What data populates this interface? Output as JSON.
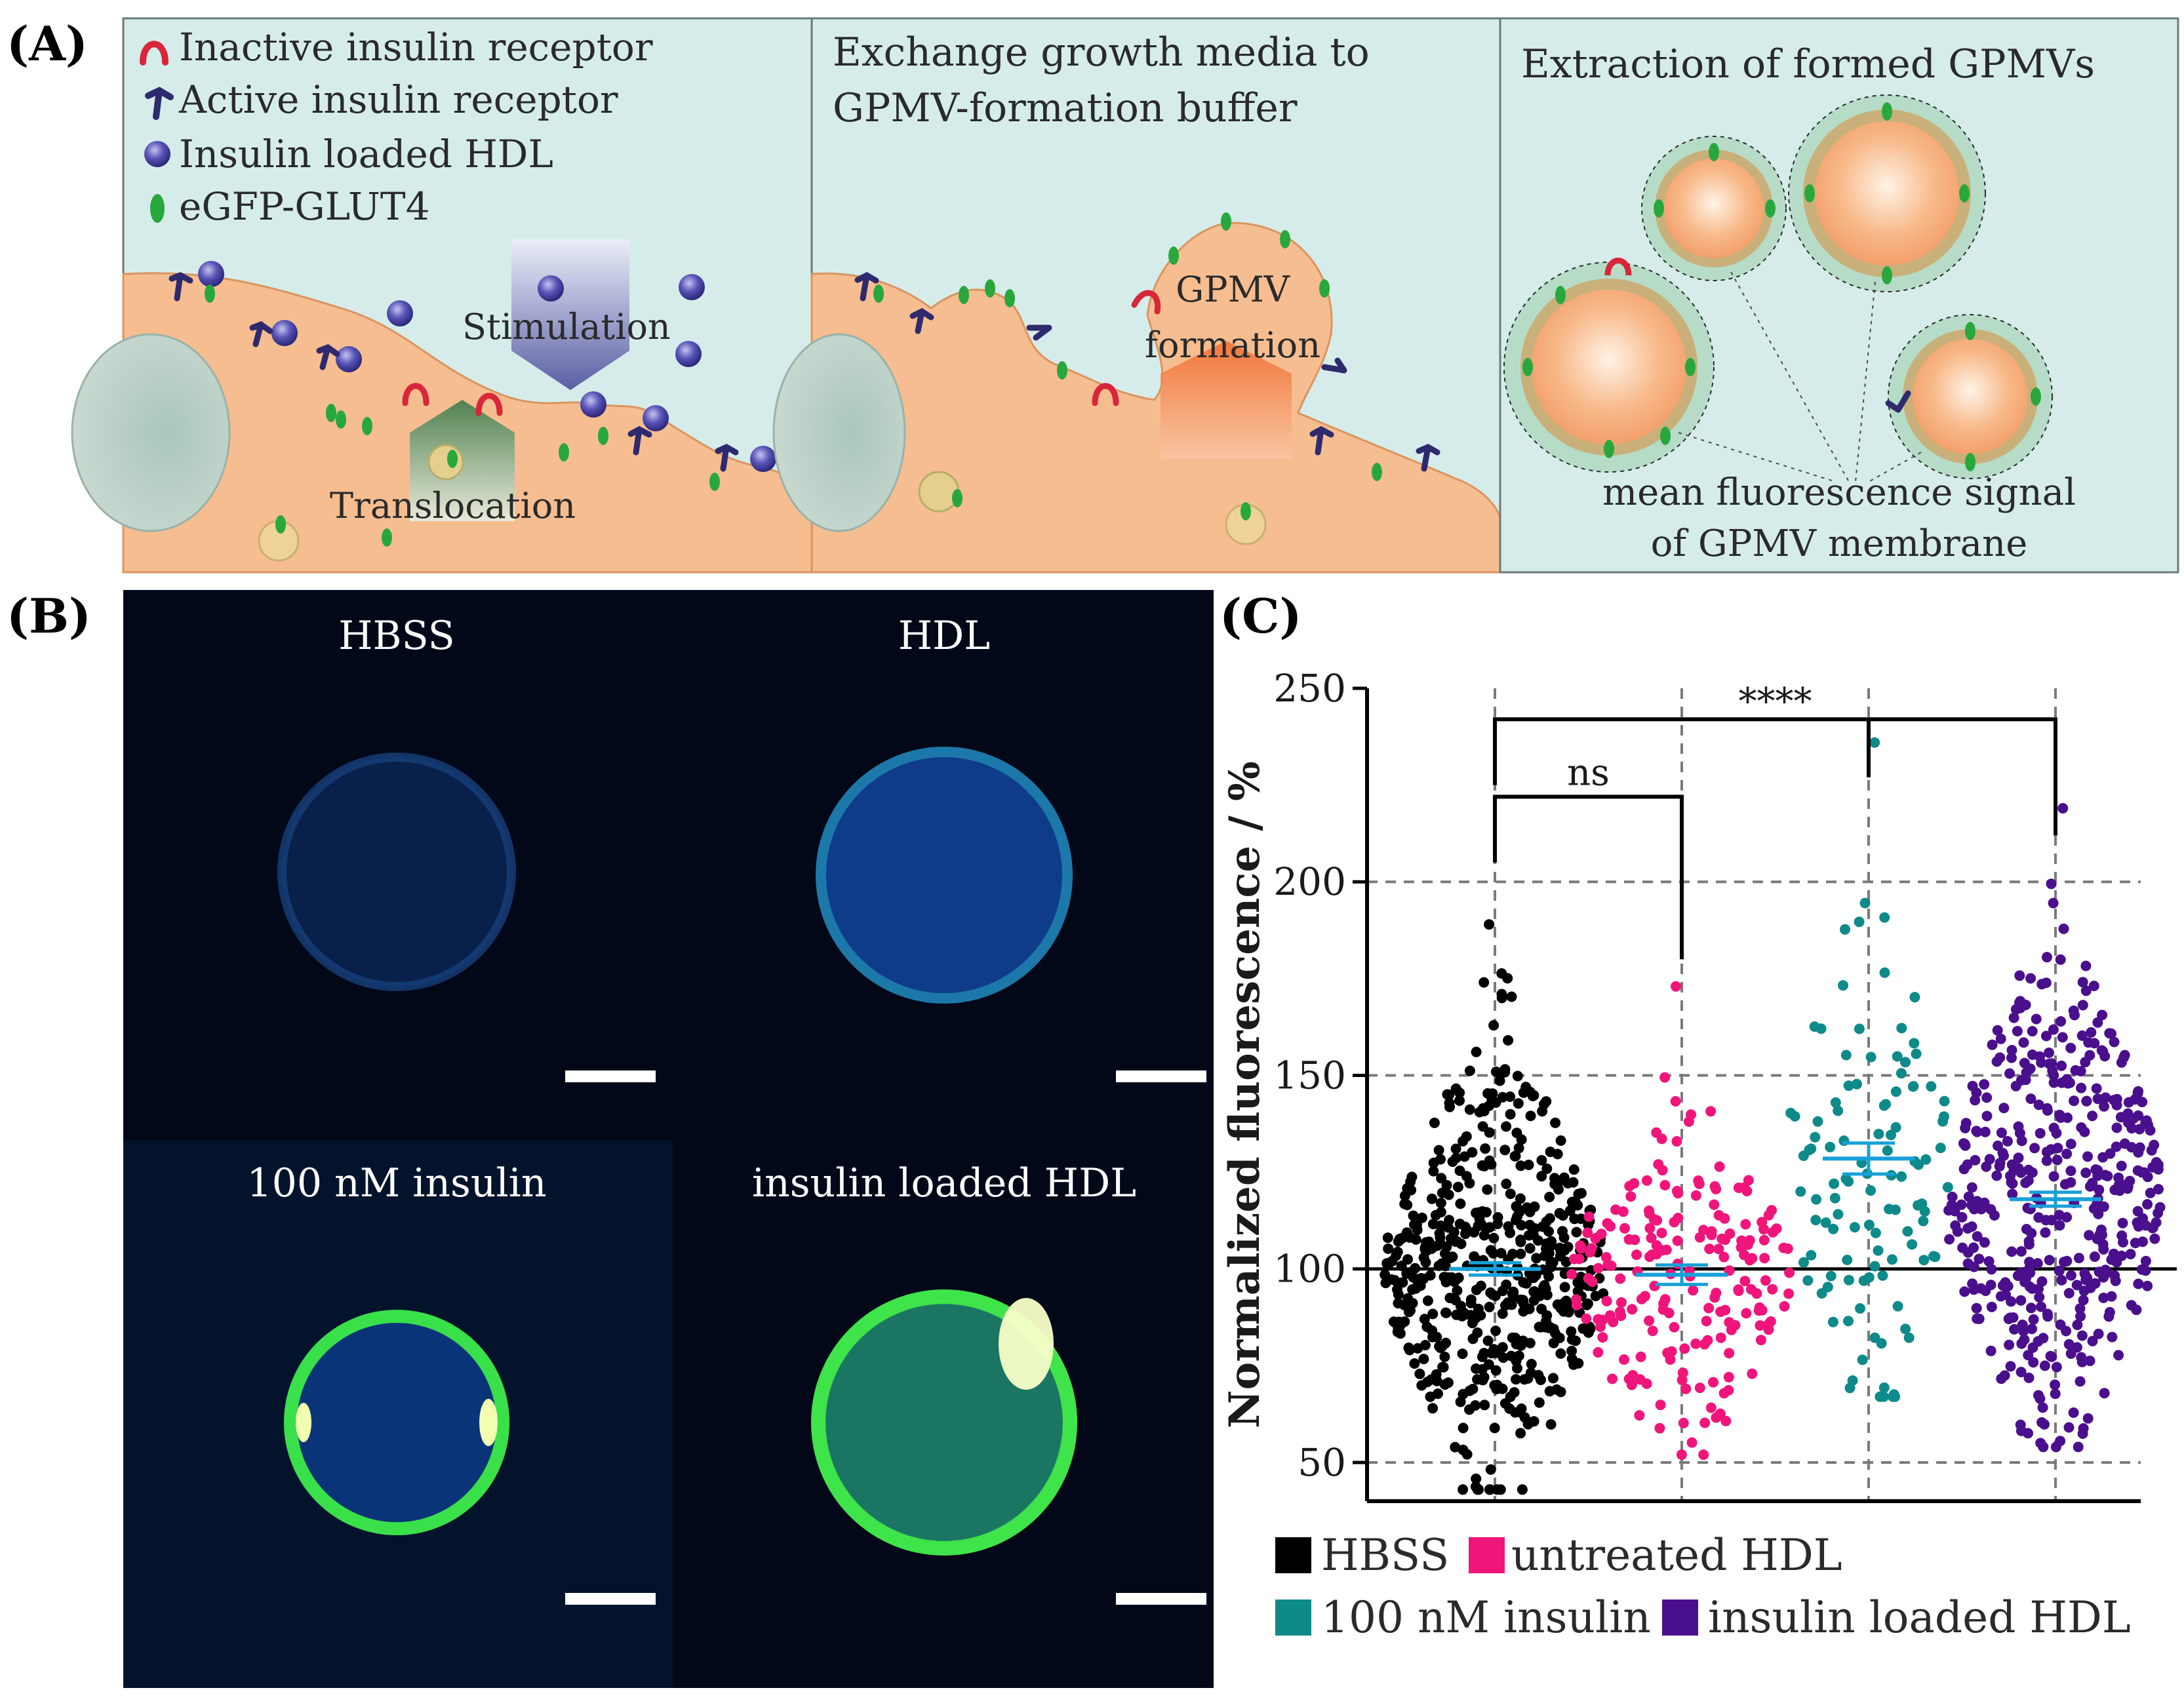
{
  "panel_a": {
    "label": "(A)",
    "legend": {
      "inactive": "Inactive insulin receptor",
      "active": "Active insulin receptor",
      "hdl": "Insulin loaded HDL",
      "glut4": "eGFP-GLUT4"
    },
    "stimulation": "Stimulation",
    "translocation": "Translocation",
    "exchange_line1": "Exchange growth media to",
    "exchange_line2": "GPMV-formation buffer",
    "gpmv_line1": "GPMV",
    "gpmv_line2": "formation",
    "extraction": "Extraction of formed GPMVs",
    "mean_line1": "mean fluorescence signal",
    "mean_line2": "of GPMV membrane"
  },
  "panel_b": {
    "label": "(B)",
    "images": [
      "HBSS",
      "HDL",
      "100 nM insulin",
      "insulin loaded HDL"
    ]
  },
  "panel_c": {
    "label": "(C)",
    "legend": [
      {
        "label": "HBSS",
        "color": "#000000"
      },
      {
        "label": "untreated HDL",
        "color": "#f0157a"
      },
      {
        "label": "100 nM insulin",
        "color": "#0e8a8a"
      },
      {
        "label": "insulin loaded HDL",
        "color": "#4a0f8c"
      }
    ]
  },
  "chart_data": {
    "type": "scatter",
    "title": "",
    "xlabel": "",
    "ylabel": "Normalized fluorescence / %",
    "ylim": [
      40,
      250
    ],
    "yticks": [
      50,
      100,
      150,
      200,
      250
    ],
    "reference_line": 100,
    "grid": "dashed",
    "series": [
      {
        "name": "HBSS",
        "color": "#000000",
        "mean": 100,
        "sem": 1.6,
        "min": 43,
        "max": 189,
        "n": 520
      },
      {
        "name": "untreated HDL",
        "color": "#f0157a",
        "mean": 98.5,
        "sem": 2.5,
        "min": 52,
        "max": 173,
        "n": 200
      },
      {
        "name": "100 nM insulin",
        "color": "#0e8a8a",
        "mean": 128.5,
        "sem": 4,
        "min": 67,
        "max": 236,
        "n": 110
      },
      {
        "name": "insulin loaded HDL",
        "color": "#4a0f8c",
        "mean": 118,
        "sem": 1.8,
        "min": 54,
        "max": 219,
        "n": 430
      }
    ],
    "annotations": [
      {
        "label": "ns",
        "from": "HBSS",
        "to": "untreated HDL"
      },
      {
        "label": "****",
        "from": "HBSS",
        "to": "insulin loaded HDL"
      }
    ]
  }
}
